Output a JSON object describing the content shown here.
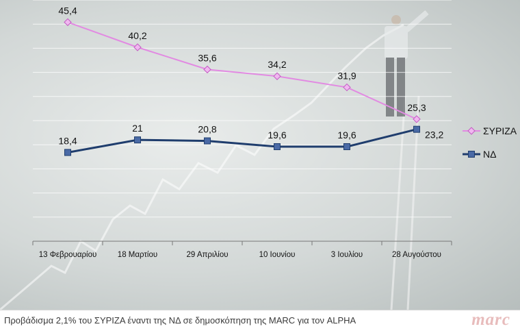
{
  "chart_data": {
    "type": "line",
    "categories": [
      "13 Φεβρουαρίου",
      "18 Μαρτίου",
      "29 Απριλίου",
      "10 Ιουνίου",
      "3 Ιουλίου",
      "28 Αυγούστου"
    ],
    "series": [
      {
        "name": "ΣΥΡΙΖΑ",
        "values": [
          45.4,
          40.2,
          35.6,
          34.2,
          31.9,
          25.3
        ],
        "labels": [
          "45,4",
          "40,2",
          "35,6",
          "34,2",
          "31,9",
          "25,3"
        ],
        "color": "#e28ae2",
        "marker": "diamond"
      },
      {
        "name": "ΝΔ",
        "values": [
          18.4,
          21,
          20.8,
          19.6,
          19.6,
          23.2
        ],
        "labels": [
          "18,4",
          "21",
          "20,8",
          "19,6",
          "19,6",
          "23,2"
        ],
        "color": "#1f3d6d",
        "marker": "square"
      }
    ],
    "title": "",
    "xlabel": "",
    "ylabel": "",
    "ylim": [
      0,
      50
    ],
    "grid": true,
    "legend": "right"
  },
  "caption": "Προβάδισμα 2,1% του ΣΥΡΙΖΑ έναντι της ΝΔ σε δημοσκόπηση της MARC για τον ALPHA",
  "brand": "marc"
}
